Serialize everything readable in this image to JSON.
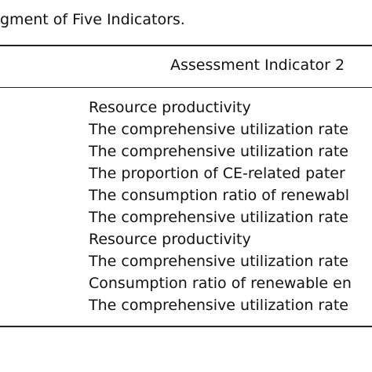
{
  "caption": "gment of Five Indicators.",
  "table": {
    "header": "Assessment Indicator 2",
    "rows": [
      "Resource productivity",
      "The comprehensive utilization rate",
      "The comprehensive utilization rate",
      "The proportion of CE-related pater",
      "The consumption ratio of renewabl",
      "The comprehensive utilization rate",
      "Resource productivity",
      "The comprehensive utilization rate",
      "Consumption ratio of renewable en",
      "The comprehensive utilization rate"
    ]
  }
}
